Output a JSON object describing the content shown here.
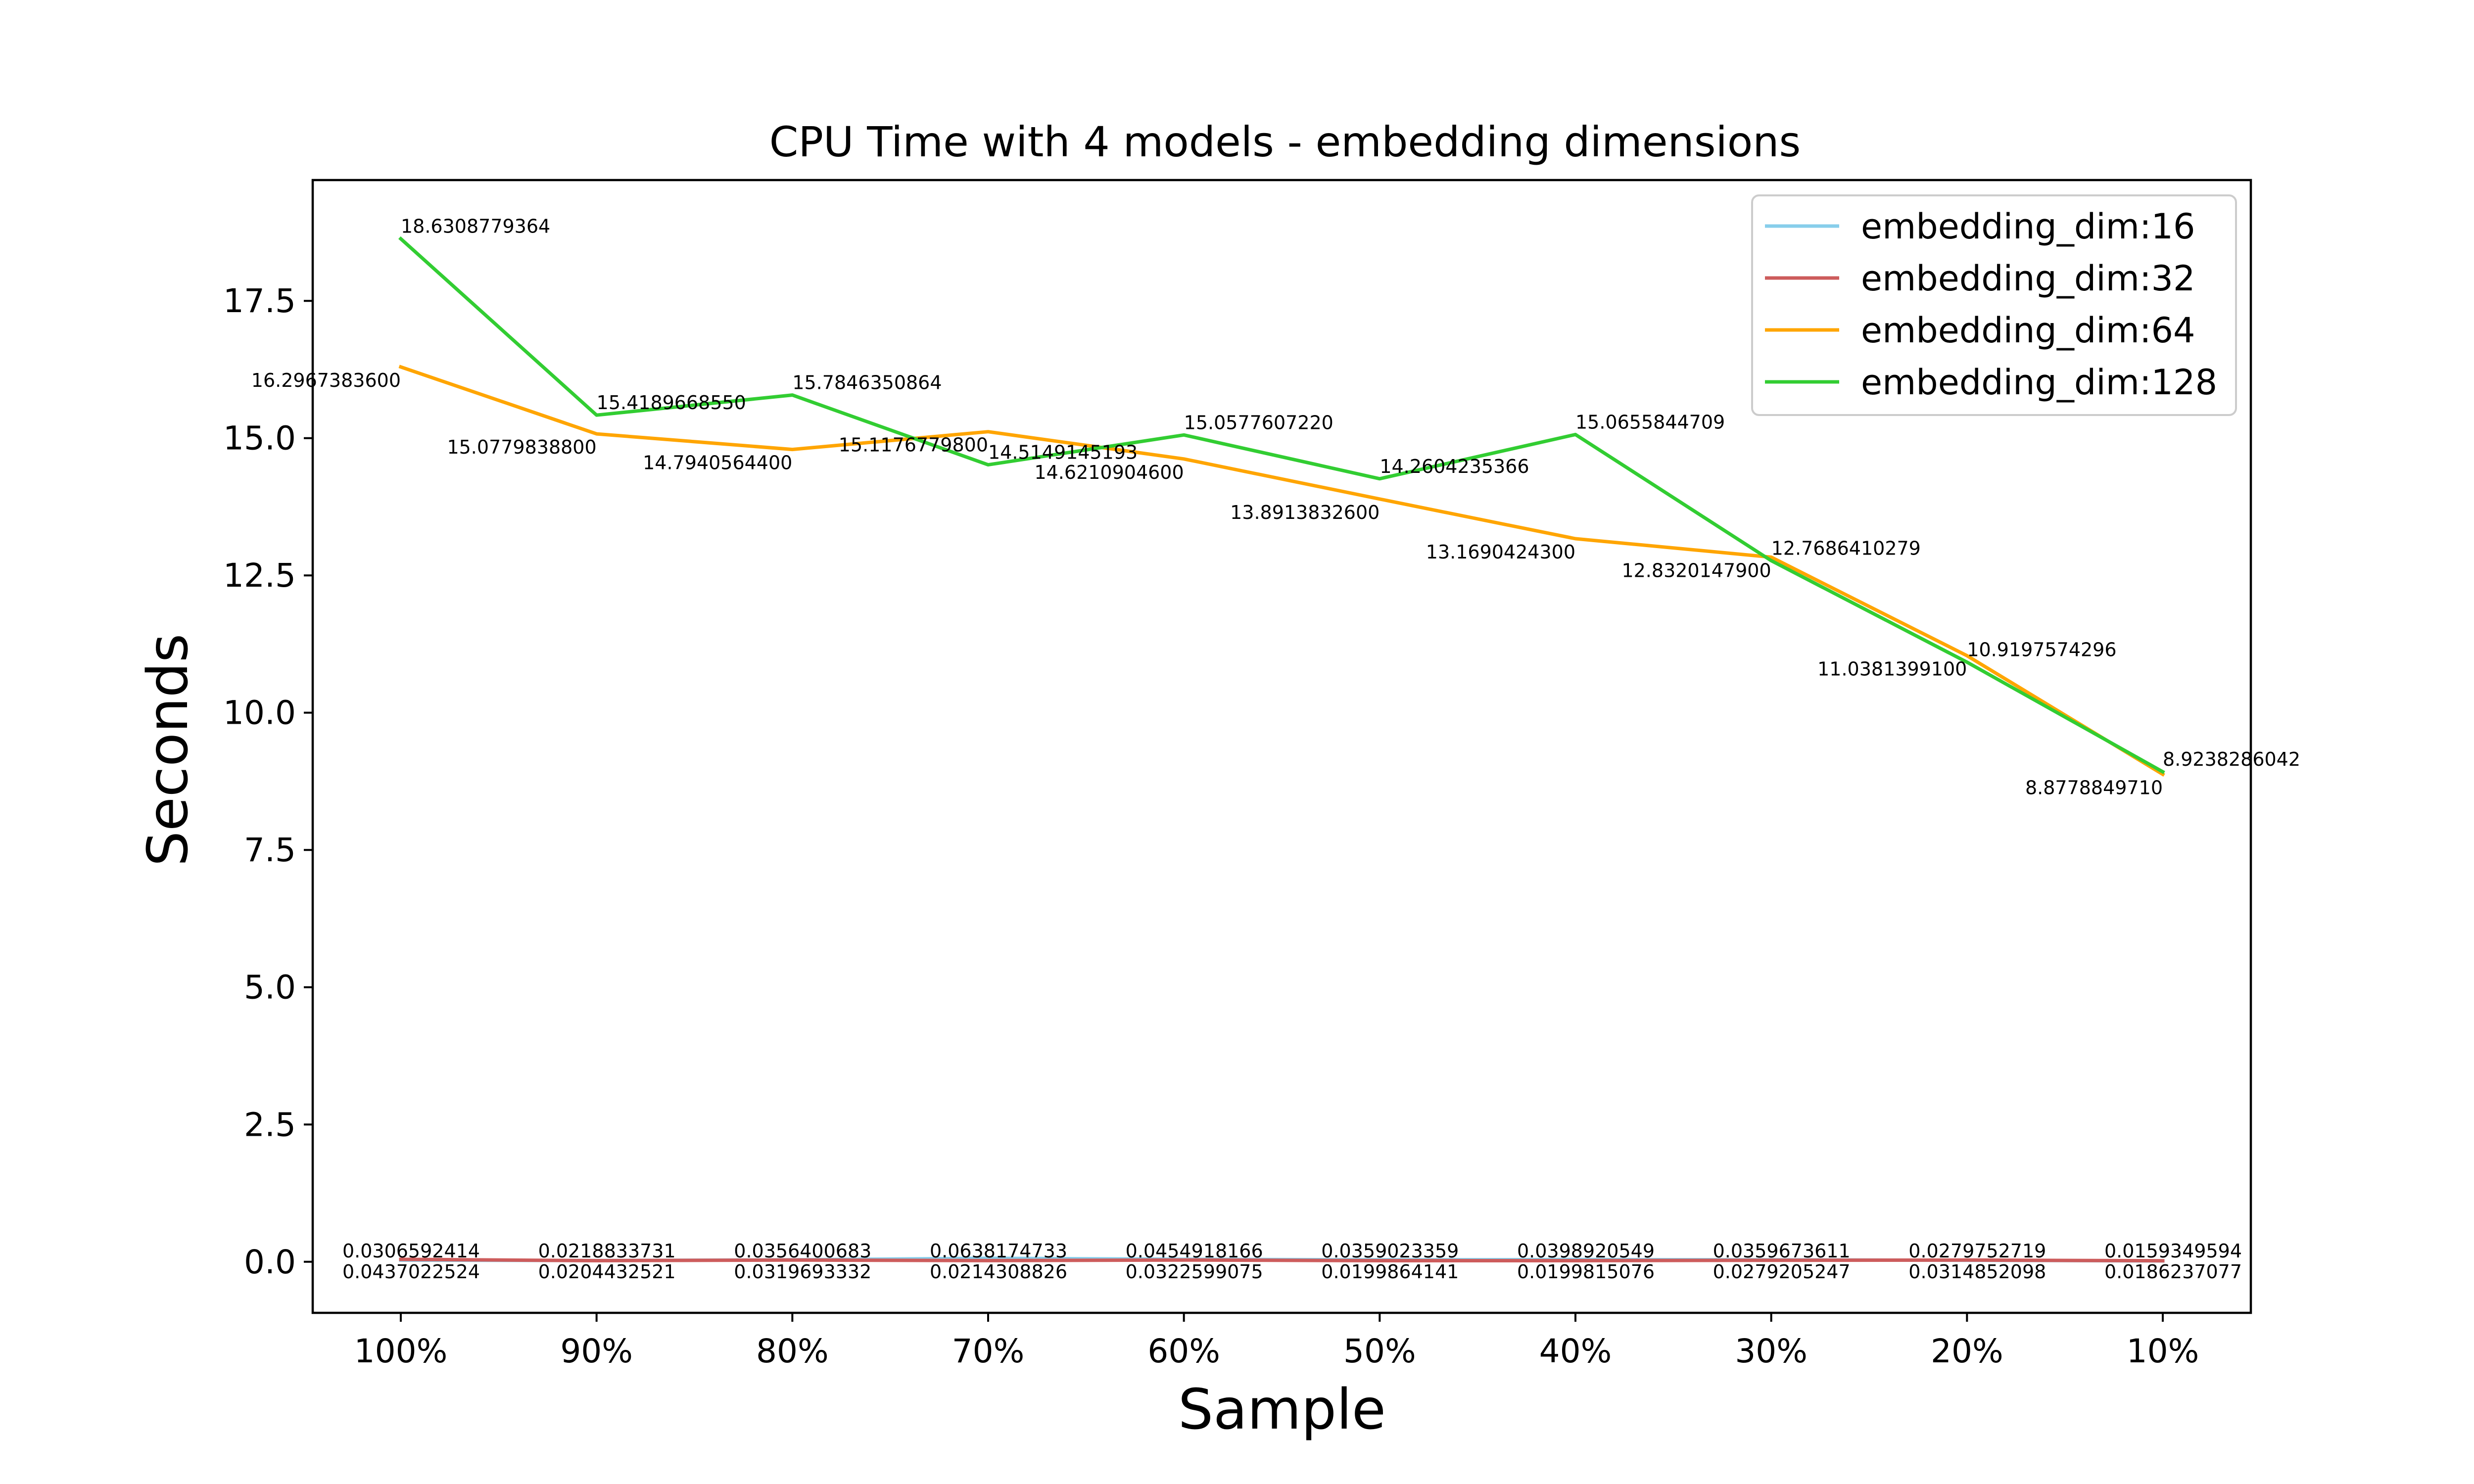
{
  "chart_data": {
    "type": "line",
    "title": "CPU Time with 4 models - embedding dimensions",
    "xlabel": "Sample",
    "ylabel": "Seconds",
    "categories": [
      "100%",
      "90%",
      "80%",
      "70%",
      "60%",
      "50%",
      "40%",
      "30%",
      "20%",
      "10%"
    ],
    "ylim": [
      -0.93,
      19.7
    ],
    "yticks": [
      "0.0",
      "2.5",
      "5.0",
      "7.5",
      "10.0",
      "12.5",
      "15.0",
      "17.5"
    ],
    "grid": false,
    "legend_position": "top-right",
    "series": [
      {
        "name": "embedding_dim:16",
        "color": "#87ceeb",
        "values": [
          0.0306592414,
          0.0218833731,
          0.0356400683,
          0.0638174733,
          0.0454918166,
          0.0359023359,
          0.0398920549,
          0.0359673611,
          0.0279752719,
          0.0159349594
        ],
        "labels": [
          "0.0306592414",
          "0.0218833731",
          "0.0356400683",
          "0.0638174733",
          "0.0454918166",
          "0.0359023359",
          "0.0398920549",
          "0.0359673611",
          "0.0279752719",
          "0.0159349594"
        ]
      },
      {
        "name": "embedding_dim:32",
        "color": "#cd5c5c",
        "values": [
          0.0437022524,
          0.0204432521,
          0.0319693332,
          0.0214308826,
          0.0322599075,
          0.0199864141,
          0.0199815076,
          0.0279205247,
          0.0314852098,
          0.0186237077
        ],
        "labels": [
          "0.0437022524",
          "0.0204432521",
          "0.0319693332",
          "0.0214308826",
          "0.0322599075",
          "0.0199864141",
          "0.0199815076",
          "0.0279205247",
          "0.0314852098",
          "0.0186237077"
        ]
      },
      {
        "name": "embedding_dim:64",
        "color": "#ffa500",
        "values": [
          16.29673836,
          15.07798388,
          14.79405644,
          15.11767798,
          14.62109046,
          13.89138326,
          13.16904243,
          12.83201479,
          11.03813991,
          8.877884971
        ],
        "labels": [
          "16.2967383600",
          "15.0779838800",
          "14.7940564400",
          "15.1176779800",
          "14.6210904600",
          "13.8913832600",
          "13.1690424300",
          "12.8320147900",
          "11.0381399100",
          "8.8778849710"
        ]
      },
      {
        "name": "embedding_dim:128",
        "color": "#32cd32",
        "values": [
          18.6308779364,
          15.418966855,
          15.7846350864,
          14.5149145193,
          15.057760722,
          14.2604235366,
          15.0655844709,
          12.7686410279,
          10.9197574296,
          8.9238286042
        ],
        "labels": [
          "18.6308779364",
          "15.4189668550",
          "15.7846350864",
          "14.5149145193",
          "15.0577607220",
          "14.2604235366",
          "15.0655844709",
          "12.7686410279",
          "10.9197574296",
          "8.9238286042"
        ]
      }
    ]
  }
}
